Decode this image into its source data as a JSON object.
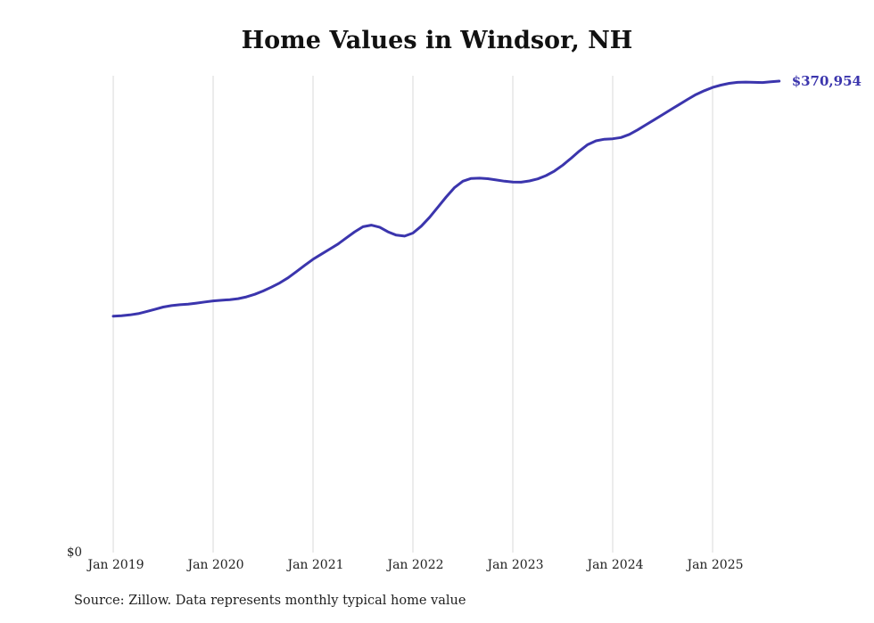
{
  "chart_data": {
    "type": "line",
    "title": "Home Values in Windsor, NH",
    "xlabel": "",
    "ylabel": "",
    "start_month": "2019-01",
    "frequency": "monthly",
    "values": [
      186000,
      186400,
      187000,
      188000,
      189600,
      191400,
      193200,
      194300,
      195000,
      195500,
      196300,
      197200,
      198000,
      198500,
      199000,
      199800,
      201200,
      203200,
      205800,
      208800,
      212200,
      216200,
      221000,
      226000,
      230800,
      234800,
      238800,
      242800,
      247600,
      252400,
      256400,
      257600,
      256000,
      252400,
      249800,
      249000,
      251400,
      256800,
      263800,
      271800,
      279800,
      287200,
      292200,
      294400,
      294600,
      294200,
      293200,
      292200,
      291600,
      291400,
      292400,
      294000,
      296600,
      300200,
      304800,
      310200,
      316000,
      321000,
      324000,
      325200,
      325600,
      326600,
      329000,
      332600,
      336600,
      340600,
      344600,
      348600,
      352600,
      356600,
      360400,
      363400,
      366000,
      367800,
      369200,
      370000,
      370200,
      370000,
      369800,
      370400,
      370954
    ],
    "final_value": 370954,
    "end_label": "$370,954",
    "x_tick_labels": [
      "Jan 2019",
      "Jan 2020",
      "Jan 2021",
      "Jan 2022",
      "Jan 2023",
      "Jan 2024",
      "Jan 2025"
    ],
    "y_tick_labels": [
      "$0"
    ],
    "y_axis_label_zero": "$0",
    "ylim": [
      0,
      375000
    ],
    "grid": "vertical-only",
    "legend": "none",
    "line_color": "#3b35ad",
    "grid_color": "#d9d9d9",
    "tick_text_color": "#222222"
  },
  "source_note": "Source: Zillow. Data represents monthly typical home value"
}
